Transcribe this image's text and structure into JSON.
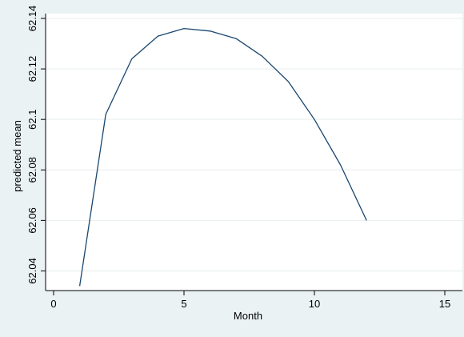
{
  "chart_data": {
    "type": "line",
    "title": "",
    "xlabel": "Month",
    "ylabel": "predicted mean",
    "xlim": [
      0,
      15
    ],
    "ylim": [
      62.03,
      62.14
    ],
    "x_ticks": [
      0,
      5,
      10,
      15
    ],
    "x_tick_labels": [
      "0",
      "5",
      "10",
      "15"
    ],
    "y_ticks": [
      62.04,
      62.06,
      62.08,
      62.1,
      62.12,
      62.14
    ],
    "y_tick_labels": [
      "62.04",
      "62.06",
      "62.08",
      "62.1",
      "62.12",
      "62.14"
    ],
    "grid": true,
    "legend": "none",
    "series": [
      {
        "x": [
          1,
          2,
          3,
          4,
          5,
          6,
          7,
          8,
          9,
          10,
          11,
          12
        ],
        "values": [
          62.034,
          62.102,
          62.124,
          62.133,
          62.136,
          62.135,
          62.132,
          62.125,
          62.115,
          62.1,
          62.082,
          62.06
        ]
      }
    ]
  },
  "colors": {
    "background": "#eaf2f3",
    "plot_background": "#ffffff",
    "grid": "#e8eeee",
    "axis": "#000000",
    "line": "#1a476f"
  }
}
